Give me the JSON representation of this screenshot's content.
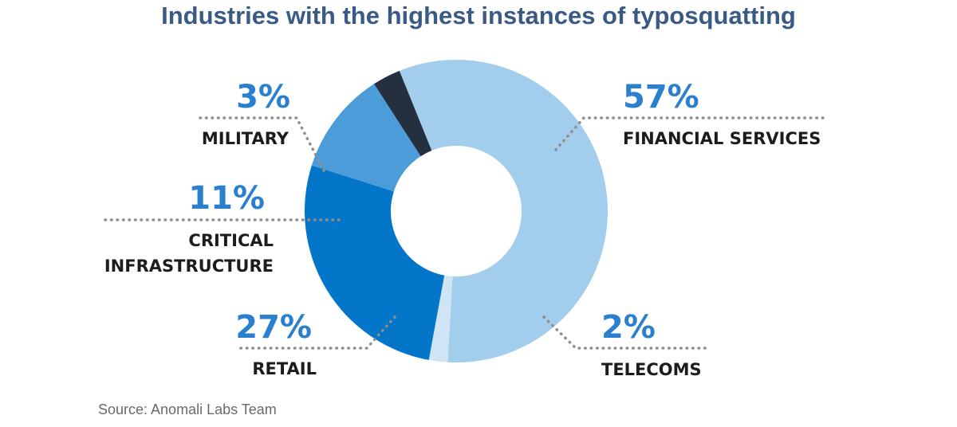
{
  "title": "Industries with the highest instances of typosquatting",
  "source": "Source: Anomali Labs Team",
  "chart_data": {
    "type": "pie",
    "donut": true,
    "title": "Industries with the highest instances of typosquatting",
    "slices": [
      {
        "label": "FINANCIAL SERVICES",
        "value": 57,
        "display": "57%",
        "color": "#a3cdec"
      },
      {
        "label": "TELECOMS",
        "value": 2,
        "display": "2%",
        "color": "#cfe4f5"
      },
      {
        "label": "RETAIL",
        "value": 27,
        "display": "27%",
        "color": "#0376c9"
      },
      {
        "label": "CRITICAL INFRASTRUCTURE",
        "label_lines": [
          "CRITICAL",
          "INFRASTRUCTURE"
        ],
        "value": 11,
        "display": "11%",
        "color": "#4b9cd9"
      },
      {
        "label": "MILITARY",
        "value": 3,
        "display": "3%",
        "color": "#24303f"
      }
    ],
    "percent_color": "#2a7fcf",
    "label_color": "#1c1c1c"
  }
}
